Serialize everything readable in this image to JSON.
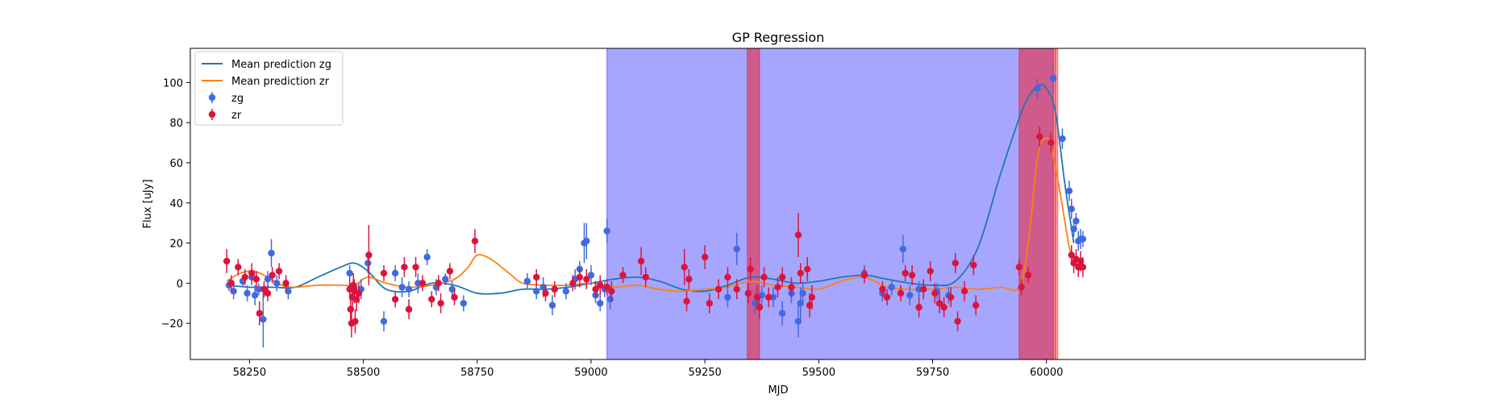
{
  "chart_data": {
    "type": "scatter",
    "title": "GP Regression",
    "xlabel": "MJD",
    "ylabel": "Flux [uJy]",
    "xlim": [
      58120,
      60700
    ],
    "ylim": [
      -38,
      117
    ],
    "xticks": [
      58250,
      58500,
      58750,
      59000,
      59250,
      59500,
      59750,
      60000
    ],
    "yticks": [
      -20,
      0,
      20,
      40,
      60,
      80,
      100
    ],
    "legend_position": "upper-left",
    "colors": {
      "line_zg": "#1f77b4",
      "line_zr": "#ff7f0e",
      "points_zg": "#4169e1",
      "points_zr": "#dc143c",
      "span_blue": "#0000ff",
      "span_red": "#ff0000"
    },
    "legend": [
      {
        "label": "Mean prediction zg",
        "kind": "line",
        "color": "#1f77b4"
      },
      {
        "label": "Mean prediction zr",
        "kind": "line",
        "color": "#ff7f0e"
      },
      {
        "label": "zg",
        "kind": "errorbar",
        "color": "#4169e1"
      },
      {
        "label": "zr",
        "kind": "errorbar",
        "color": "#dc143c"
      }
    ],
    "shaded_regions": [
      {
        "x0": 59035,
        "x1": 60015,
        "color": "blue",
        "opacity": 0.35
      },
      {
        "x0": 59343,
        "x1": 59370,
        "color": "red",
        "opacity": 0.45
      },
      {
        "x0": 59940,
        "x1": 60020,
        "color": "red",
        "opacity": 0.45
      },
      {
        "x0": 60020,
        "x1": 60025,
        "color": "red",
        "opacity": 0.35
      }
    ],
    "gp_lines": [
      {
        "name": "Mean prediction zg",
        "color": "#1f77b4",
        "points": [
          [
            58200,
            -1
          ],
          [
            58250,
            -2
          ],
          [
            58300,
            -2
          ],
          [
            58350,
            -2
          ],
          [
            58400,
            3
          ],
          [
            58450,
            8
          ],
          [
            58480,
            10
          ],
          [
            58510,
            6
          ],
          [
            58550,
            -3
          ],
          [
            58600,
            -4
          ],
          [
            58650,
            0
          ],
          [
            58700,
            -1
          ],
          [
            58750,
            -5
          ],
          [
            58800,
            -5
          ],
          [
            58850,
            -3
          ],
          [
            58900,
            -3
          ],
          [
            58950,
            -2
          ],
          [
            59000,
            0
          ],
          [
            59050,
            2
          ],
          [
            59100,
            3
          ],
          [
            59150,
            1
          ],
          [
            59200,
            -3
          ],
          [
            59250,
            -4
          ],
          [
            59300,
            -1
          ],
          [
            59350,
            3
          ],
          [
            59400,
            2
          ],
          [
            59450,
            0
          ],
          [
            59500,
            1
          ],
          [
            59550,
            3
          ],
          [
            59600,
            4
          ],
          [
            59650,
            2
          ],
          [
            59700,
            0
          ],
          [
            59750,
            -1
          ],
          [
            59800,
            1
          ],
          [
            59850,
            18
          ],
          [
            59900,
            55
          ],
          [
            59950,
            88
          ],
          [
            59980,
            98
          ],
          [
            60000,
            97
          ],
          [
            60020,
            85
          ],
          [
            60040,
            50
          ],
          [
            60060,
            20
          ]
        ]
      },
      {
        "name": "Mean prediction zr",
        "color": "#ff7f0e",
        "points": [
          [
            58200,
            1
          ],
          [
            58230,
            5
          ],
          [
            58260,
            6
          ],
          [
            58290,
            3
          ],
          [
            58320,
            -1
          ],
          [
            58350,
            -2
          ],
          [
            58400,
            -1
          ],
          [
            58450,
            -1
          ],
          [
            58480,
            -1
          ],
          [
            58510,
            3
          ],
          [
            58550,
            0
          ],
          [
            58600,
            -2
          ],
          [
            58650,
            -1
          ],
          [
            58700,
            2
          ],
          [
            58730,
            8
          ],
          [
            58750,
            14
          ],
          [
            58780,
            12
          ],
          [
            58820,
            5
          ],
          [
            58850,
            0
          ],
          [
            58900,
            -1
          ],
          [
            58950,
            -1
          ],
          [
            59000,
            0
          ],
          [
            59050,
            -2
          ],
          [
            59100,
            -1
          ],
          [
            59150,
            -3
          ],
          [
            59200,
            -4
          ],
          [
            59250,
            -3
          ],
          [
            59300,
            -2
          ],
          [
            59350,
            1
          ],
          [
            59400,
            -1
          ],
          [
            59450,
            -2
          ],
          [
            59500,
            -3
          ],
          [
            59550,
            1
          ],
          [
            59600,
            3
          ],
          [
            59650,
            -2
          ],
          [
            59700,
            -3
          ],
          [
            59750,
            -3
          ],
          [
            59800,
            -2
          ],
          [
            59850,
            -3
          ],
          [
            59900,
            -2
          ],
          [
            59940,
            -2
          ],
          [
            59960,
            20
          ],
          [
            59980,
            62
          ],
          [
            59995,
            72
          ],
          [
            60010,
            68
          ],
          [
            60030,
            45
          ],
          [
            60050,
            18
          ],
          [
            60060,
            12
          ]
        ]
      }
    ],
    "series": [
      {
        "name": "zg",
        "color": "#4169e1",
        "points": [
          [
            58205,
            -1,
            3
          ],
          [
            58215,
            -4,
            4
          ],
          [
            58235,
            1,
            3
          ],
          [
            58245,
            -5,
            4
          ],
          [
            58255,
            3,
            4
          ],
          [
            58262,
            -6,
            5
          ],
          [
            58270,
            -3,
            3
          ],
          [
            58280,
            -18,
            14
          ],
          [
            58290,
            2,
            4
          ],
          [
            58298,
            15,
            7
          ],
          [
            58310,
            0,
            4
          ],
          [
            58335,
            -4,
            4
          ],
          [
            58470,
            5,
            4
          ],
          [
            58480,
            -2,
            4
          ],
          [
            58495,
            -3,
            5
          ],
          [
            58510,
            10,
            5
          ],
          [
            58545,
            -19,
            5
          ],
          [
            58570,
            5,
            4
          ],
          [
            58585,
            -2,
            5
          ],
          [
            58600,
            -3,
            4
          ],
          [
            58620,
            0,
            5
          ],
          [
            58640,
            13,
            4
          ],
          [
            58660,
            -2,
            4
          ],
          [
            58680,
            2,
            3
          ],
          [
            58695,
            -3,
            4
          ],
          [
            58720,
            -10,
            4
          ],
          [
            58860,
            1,
            4
          ],
          [
            58880,
            -4,
            4
          ],
          [
            58895,
            -2,
            5
          ],
          [
            58915,
            -11,
            5
          ],
          [
            58945,
            -4,
            4
          ],
          [
            58965,
            2,
            5
          ],
          [
            58975,
            7,
            4
          ],
          [
            58985,
            20,
            10
          ],
          [
            58990,
            21,
            9
          ],
          [
            59000,
            4,
            5
          ],
          [
            59010,
            -6,
            4
          ],
          [
            59020,
            -10,
            4
          ],
          [
            59030,
            -3,
            4
          ],
          [
            59035,
            26,
            6
          ],
          [
            59042,
            -8,
            5
          ],
          [
            59300,
            -7,
            5
          ],
          [
            59320,
            17,
            8
          ],
          [
            59345,
            -5,
            5
          ],
          [
            59360,
            -10,
            5
          ],
          [
            59375,
            -6,
            5
          ],
          [
            59400,
            -7,
            5
          ],
          [
            59420,
            -15,
            6
          ],
          [
            59440,
            -5,
            5
          ],
          [
            59455,
            -19,
            8
          ],
          [
            59460,
            -10,
            8
          ],
          [
            59465,
            -5,
            6
          ],
          [
            59600,
            5,
            4
          ],
          [
            59640,
            -5,
            4
          ],
          [
            59660,
            -2,
            4
          ],
          [
            59685,
            17,
            7
          ],
          [
            59700,
            -6,
            5
          ],
          [
            59720,
            -3,
            4
          ],
          [
            59760,
            -4,
            4
          ],
          [
            59785,
            -6,
            4
          ],
          [
            59980,
            97,
            5
          ],
          [
            60015,
            102,
            7
          ],
          [
            60035,
            72,
            5
          ],
          [
            60050,
            46,
            5
          ],
          [
            60055,
            37,
            5
          ],
          [
            60060,
            27,
            4
          ],
          [
            60065,
            31,
            4
          ],
          [
            60070,
            21,
            5
          ],
          [
            60075,
            22,
            5
          ],
          [
            60080,
            22,
            4
          ]
        ]
      },
      {
        "name": "zr",
        "color": "#dc143c",
        "points": [
          [
            58200,
            11,
            6
          ],
          [
            58210,
            0,
            4
          ],
          [
            58225,
            8,
            4
          ],
          [
            58240,
            3,
            4
          ],
          [
            58255,
            5,
            5
          ],
          [
            58265,
            2,
            4
          ],
          [
            58272,
            -15,
            6
          ],
          [
            58282,
            -3,
            4
          ],
          [
            58290,
            -5,
            4
          ],
          [
            58300,
            4,
            4
          ],
          [
            58315,
            6,
            4
          ],
          [
            58330,
            0,
            4
          ],
          [
            58470,
            -3,
            5
          ],
          [
            58472,
            -13,
            8
          ],
          [
            58474,
            -20,
            7
          ],
          [
            58476,
            -7,
            7
          ],
          [
            58478,
            -1,
            6
          ],
          [
            58480,
            -4,
            6
          ],
          [
            58482,
            -19,
            6
          ],
          [
            58485,
            -8,
            6
          ],
          [
            58490,
            -5,
            5
          ],
          [
            58512,
            14,
            15
          ],
          [
            58545,
            5,
            4
          ],
          [
            58570,
            -8,
            4
          ],
          [
            58590,
            8,
            5
          ],
          [
            58600,
            -13,
            5
          ],
          [
            58615,
            8,
            5
          ],
          [
            58630,
            0,
            4
          ],
          [
            58650,
            -8,
            4
          ],
          [
            58665,
            0,
            4
          ],
          [
            58670,
            -10,
            5
          ],
          [
            58690,
            6,
            4
          ],
          [
            58700,
            -7,
            4
          ],
          [
            58745,
            21,
            6
          ],
          [
            58880,
            3,
            4
          ],
          [
            58900,
            -5,
            4
          ],
          [
            58920,
            -3,
            4
          ],
          [
            58960,
            0,
            4
          ],
          [
            58975,
            3,
            5
          ],
          [
            58990,
            2,
            5
          ],
          [
            59010,
            -3,
            4
          ],
          [
            59020,
            -1,
            5
          ],
          [
            59035,
            -2,
            4
          ],
          [
            59045,
            -4,
            5
          ],
          [
            59070,
            4,
            4
          ],
          [
            59110,
            11,
            7
          ],
          [
            59120,
            3,
            5
          ],
          [
            59205,
            8,
            9
          ],
          [
            59210,
            -9,
            5
          ],
          [
            59215,
            2,
            5
          ],
          [
            59250,
            13,
            6
          ],
          [
            59260,
            -10,
            5
          ],
          [
            59280,
            -3,
            5
          ],
          [
            59300,
            3,
            5
          ],
          [
            59320,
            -3,
            5
          ],
          [
            59345,
            -5,
            5
          ],
          [
            59350,
            7,
            6
          ],
          [
            59365,
            -7,
            6
          ],
          [
            59370,
            -12,
            6
          ],
          [
            59380,
            3,
            5
          ],
          [
            59390,
            -7,
            5
          ],
          [
            59410,
            -2,
            5
          ],
          [
            59420,
            3,
            5
          ],
          [
            59440,
            -2,
            5
          ],
          [
            59455,
            24,
            11
          ],
          [
            59460,
            5,
            5
          ],
          [
            59475,
            7,
            6
          ],
          [
            59480,
            -11,
            6
          ],
          [
            59485,
            -7,
            6
          ],
          [
            59600,
            4,
            4
          ],
          [
            59640,
            -3,
            4
          ],
          [
            59650,
            -7,
            4
          ],
          [
            59680,
            -5,
            4
          ],
          [
            59690,
            5,
            4
          ],
          [
            59705,
            4,
            5
          ],
          [
            59720,
            -12,
            5
          ],
          [
            59730,
            -3,
            5
          ],
          [
            59745,
            6,
            5
          ],
          [
            59755,
            -5,
            5
          ],
          [
            59765,
            -10,
            5
          ],
          [
            59775,
            -12,
            5
          ],
          [
            59790,
            -7,
            5
          ],
          [
            59800,
            10,
            5
          ],
          [
            59805,
            -19,
            5
          ],
          [
            59820,
            -4,
            5
          ],
          [
            59840,
            9,
            5
          ],
          [
            59845,
            -11,
            5
          ],
          [
            59940,
            8,
            4
          ],
          [
            59945,
            -2,
            4
          ],
          [
            59960,
            4,
            4
          ],
          [
            59985,
            73,
            5
          ],
          [
            60010,
            70,
            5
          ],
          [
            60055,
            14,
            5
          ],
          [
            60060,
            10,
            5
          ],
          [
            60065,
            12,
            5
          ],
          [
            60070,
            8,
            5
          ],
          [
            60075,
            11,
            5
          ],
          [
            60080,
            8,
            5
          ]
        ]
      }
    ]
  }
}
